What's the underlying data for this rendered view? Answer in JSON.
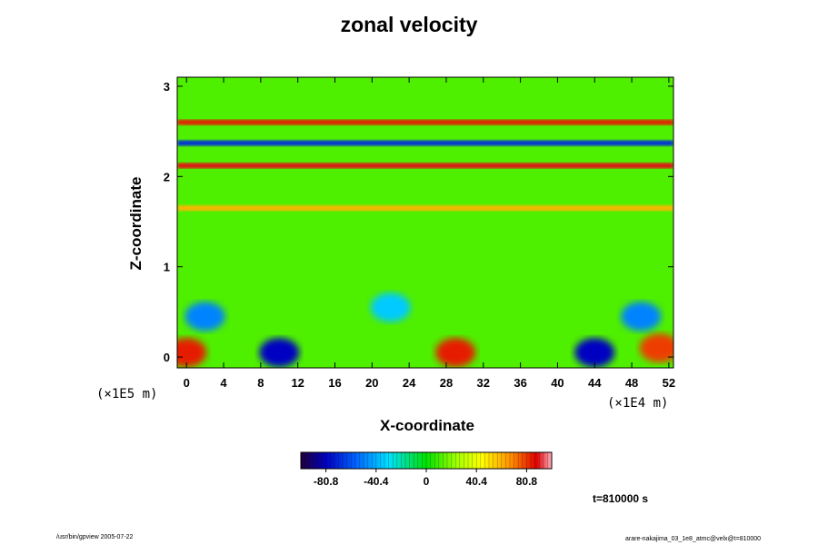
{
  "chart_data": {
    "type": "heatmap",
    "title": "zonal velocity",
    "xlabel": "X-coordinate",
    "ylabel": "Z-coordinate",
    "x_scale_label": "(×1E4 m)",
    "y_scale_label": "(×1E5 m)",
    "xlim": [
      -1,
      52.5
    ],
    "ylim": [
      -0.12,
      3.1
    ],
    "x_ticks": [
      0,
      4,
      8,
      12,
      16,
      20,
      24,
      28,
      32,
      36,
      40,
      44,
      48,
      52
    ],
    "y_ticks": [
      0,
      1,
      2,
      3
    ],
    "colorbar": {
      "range": [
        -101,
        101
      ],
      "tick_values": [
        -80.8,
        -40.4,
        0,
        40.4,
        80.8
      ],
      "tick_labels": [
        "-80.8",
        "-40.4",
        "0",
        "40.4",
        "80.8"
      ]
    },
    "bands": [
      {
        "z": 2.6,
        "value": 85
      },
      {
        "z": 2.37,
        "value": -70
      },
      {
        "z": 2.12,
        "value": 90
      },
      {
        "z": 1.65,
        "value": 60
      }
    ],
    "blobs": [
      {
        "x": 0,
        "z": 0.05,
        "value": 85
      },
      {
        "x": 10,
        "z": 0.05,
        "value": -80
      },
      {
        "x": 29,
        "z": 0.05,
        "value": 85
      },
      {
        "x": 44,
        "z": 0.05,
        "value": -80
      },
      {
        "x": 51,
        "z": 0.1,
        "value": 80
      },
      {
        "x": 2,
        "z": 0.45,
        "value": -50
      },
      {
        "x": 49,
        "z": 0.45,
        "value": -50
      },
      {
        "x": 22,
        "z": 0.55,
        "value": -35
      }
    ],
    "time_label": "t=810000 s"
  },
  "footer": {
    "left": "/usr/bin/gpview 2005-07-22",
    "right": "arare-nakajima_03_1e8_atmc@velx@t=810000"
  }
}
